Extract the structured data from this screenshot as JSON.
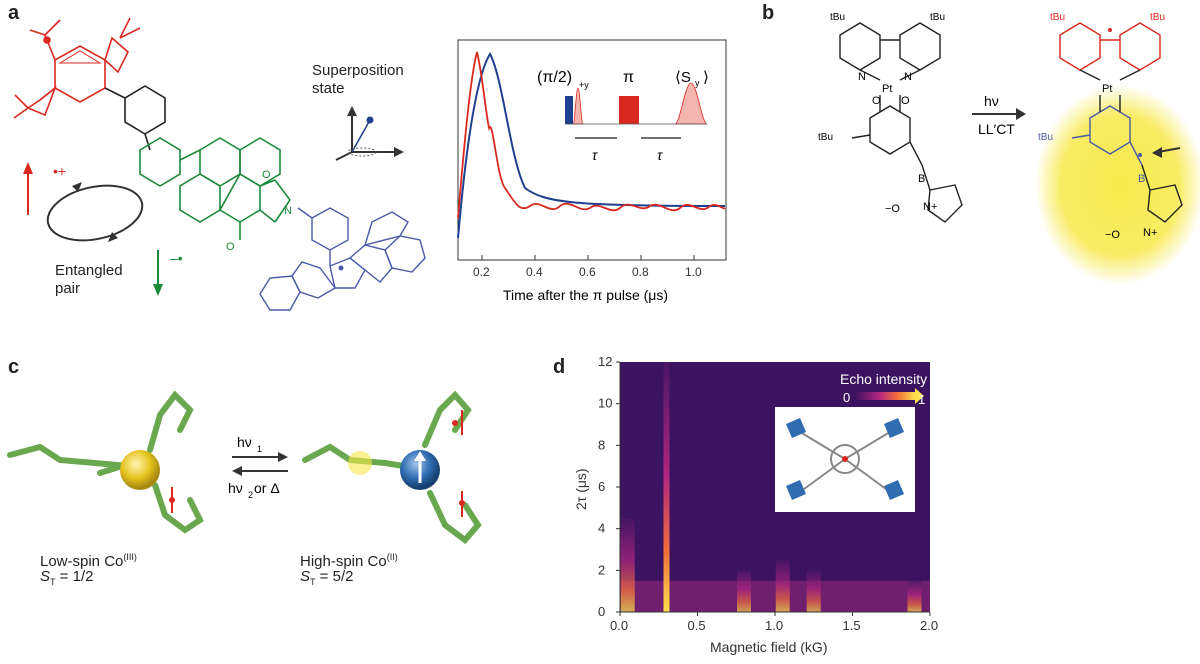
{
  "panels": {
    "a": {
      "letter": "a",
      "superposition_label": "Superposition state",
      "entangled_label": "Entangled pair",
      "radical_cation": "•+",
      "radical_anion": "–•",
      "inset_labels": {
        "pulse1": "(π/2)",
        "pulse1_sub": "+y",
        "pulse2": "π",
        "signal": "⟨S",
        "signal_sub": "y",
        "signal_close": "⟩",
        "tau1": "τ",
        "tau2": "τ"
      },
      "xlabel": "Time after the π pulse (μs)",
      "xticks": [
        "0.2",
        "0.4",
        "0.6",
        "0.8",
        "1.0"
      ],
      "colors": {
        "red": "#d9281f",
        "blue": "#1f3f8f",
        "green": "#1a8a3a",
        "donor_blue": "#4a5aa8"
      }
    },
    "b": {
      "letter": "b",
      "tbu": "tBu",
      "pt": "Pt",
      "arrow_label_top": "hν",
      "arrow_label_bottom": "LL′CT",
      "boron": "B",
      "o_minus": "−O",
      "n_plus": "N+",
      "highlight": "#f7e94a"
    },
    "c": {
      "letter": "c",
      "arrow_top": "hν",
      "arrow_top_sub": "1",
      "arrow_bottom": "hν",
      "arrow_bottom_sub": "2",
      "arrow_bottom_rest": " or Δ",
      "left_label": "Low-spin Co",
      "left_sup": "(III)",
      "left_spin": "S",
      "left_spin_sub": "T",
      "left_spin_val": " = 1/2",
      "right_label": "High-spin Co",
      "right_sup": "(II)",
      "right_spin": "S",
      "right_spin_sub": "T",
      "right_spin_val": " = 5/2"
    },
    "d": {
      "letter": "d",
      "legend_title": "Echo intensity",
      "legend_min": "0",
      "legend_max": "1"
    }
  },
  "chart_data": {
    "type": "heatmap",
    "title": "",
    "xlabel": "Magnetic field (kG)",
    "ylabel": "2τ (μs)",
    "xlim": [
      0.0,
      2.0
    ],
    "ylim": [
      0,
      12
    ],
    "xticks": [
      "0.0",
      "0.5",
      "1.0",
      "1.5",
      "2.0"
    ],
    "yticks": [
      "0",
      "2",
      "4",
      "6",
      "8",
      "10",
      "12"
    ],
    "colorbar": {
      "min": 0,
      "max": 1,
      "label": "Echo intensity"
    },
    "features": [
      {
        "field": 0.3,
        "tau2_max": 12,
        "intensity": 1.0
      },
      {
        "field": 0.05,
        "tau2_max": 4.5,
        "intensity": 0.55
      },
      {
        "field": 0.8,
        "tau2_max": 2.0,
        "intensity": 0.45
      },
      {
        "field": 1.05,
        "tau2_max": 2.5,
        "intensity": 0.5
      },
      {
        "field": 1.25,
        "tau2_max": 2.0,
        "intensity": 0.45
      },
      {
        "field": 1.9,
        "tau2_max": 1.5,
        "intensity": 0.5
      }
    ]
  }
}
